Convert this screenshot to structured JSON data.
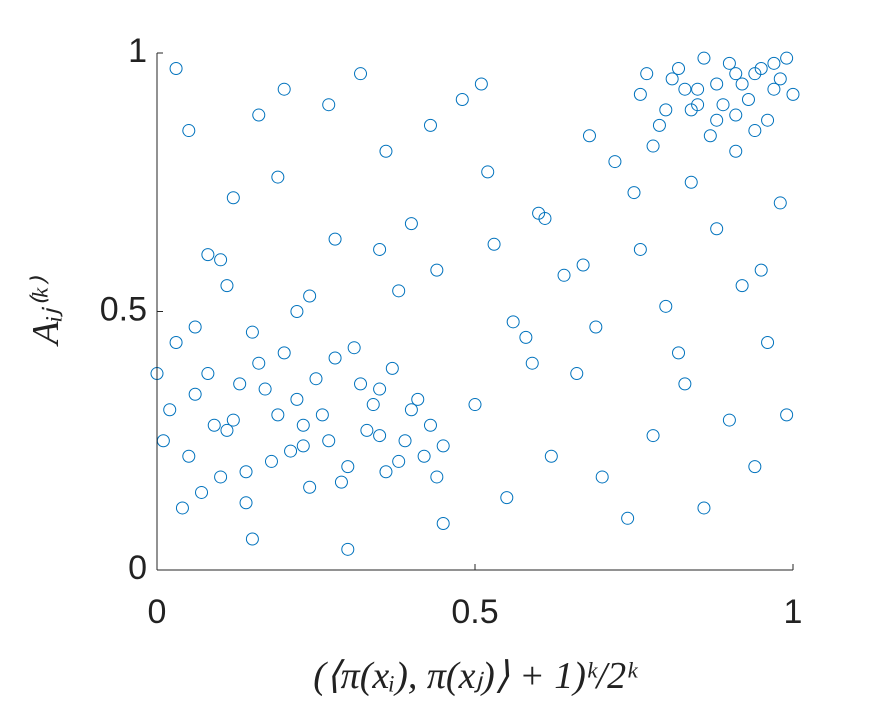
{
  "chart_data": {
    "type": "scatter",
    "x_label": "(⟨π(xᵢ), π(xⱼ)⟩ + 1)ᵏ/2ᵏ",
    "y_label": "Aᵢⱼ⁽ᵏ⁾",
    "xlim": [
      0,
      1
    ],
    "ylim": [
      0,
      1
    ],
    "xticks": [
      0,
      0.5,
      1
    ],
    "yticks": [
      0,
      0.5,
      1
    ],
    "series": [
      {
        "color": "#0072BD",
        "x": [
          0.02,
          0.05,
          0.08,
          0.11,
          0.14,
          0.17,
          0.2,
          0.23,
          0.26,
          0.29,
          0.32,
          0.35,
          0.38,
          0.41,
          0.44,
          0.03,
          0.07,
          0.12,
          0.16,
          0.21,
          0.25,
          0.3,
          0.34,
          0.39,
          0.43,
          0.01,
          0.06,
          0.1,
          0.15,
          0.19,
          0.24,
          0.28,
          0.33,
          0.37,
          0.42,
          0.04,
          0.09,
          0.13,
          0.18,
          0.22,
          0.27,
          0.31,
          0.36,
          0.4,
          0.45,
          0.0,
          0.06,
          0.14,
          0.23,
          0.35,
          0.76,
          0.79,
          0.82,
          0.85,
          0.88,
          0.91,
          0.94,
          0.97,
          0.99,
          0.78,
          0.81,
          0.84,
          0.87,
          0.9,
          0.93,
          0.96,
          0.98,
          0.77,
          0.83,
          0.86,
          0.89,
          0.92,
          0.95,
          1.0,
          0.8,
          0.88,
          0.94,
          0.97,
          0.91,
          0.85,
          0.05,
          0.12,
          0.2,
          0.28,
          0.36,
          0.44,
          0.52,
          0.6,
          0.68,
          0.76,
          0.84,
          0.92,
          0.98,
          0.08,
          0.16,
          0.24,
          0.32,
          0.4,
          0.48,
          0.56,
          0.64,
          0.72,
          0.8,
          0.88,
          0.96,
          0.03,
          0.11,
          0.19,
          0.27,
          0.35,
          0.43,
          0.51,
          0.59,
          0.67,
          0.75,
          0.83,
          0.91,
          0.99,
          0.15,
          0.3,
          0.45,
          0.55,
          0.62,
          0.7,
          0.78,
          0.86,
          0.94,
          0.5,
          0.58,
          0.66,
          0.74,
          0.82,
          0.9,
          0.1,
          0.22,
          0.38,
          0.53,
          0.61,
          0.69,
          0.95
        ],
        "values": [
          0.31,
          0.22,
          0.38,
          0.27,
          0.19,
          0.35,
          0.42,
          0.24,
          0.3,
          0.17,
          0.36,
          0.26,
          0.21,
          0.33,
          0.18,
          0.44,
          0.15,
          0.29,
          0.4,
          0.23,
          0.37,
          0.2,
          0.32,
          0.25,
          0.28,
          0.25,
          0.34,
          0.18,
          0.46,
          0.3,
          0.16,
          0.41,
          0.27,
          0.39,
          0.22,
          0.12,
          0.28,
          0.36,
          0.21,
          0.33,
          0.25,
          0.43,
          0.19,
          0.31,
          0.24,
          0.38,
          0.47,
          0.13,
          0.28,
          0.35,
          0.92,
          0.86,
          0.97,
          0.9,
          0.94,
          0.88,
          0.96,
          0.93,
          0.99,
          0.82,
          0.95,
          0.89,
          0.84,
          0.98,
          0.91,
          0.87,
          0.95,
          0.96,
          0.93,
          0.99,
          0.9,
          0.94,
          0.97,
          0.92,
          0.89,
          0.87,
          0.85,
          0.98,
          0.96,
          0.93,
          0.85,
          0.72,
          0.93,
          0.64,
          0.81,
          0.58,
          0.77,
          0.69,
          0.84,
          0.62,
          0.75,
          0.55,
          0.71,
          0.61,
          0.88,
          0.53,
          0.96,
          0.67,
          0.91,
          0.48,
          0.57,
          0.79,
          0.51,
          0.66,
          0.44,
          0.97,
          0.55,
          0.76,
          0.9,
          0.62,
          0.86,
          0.94,
          0.4,
          0.59,
          0.73,
          0.36,
          0.81,
          0.3,
          0.06,
          0.04,
          0.09,
          0.14,
          0.22,
          0.18,
          0.26,
          0.12,
          0.2,
          0.32,
          0.45,
          0.38,
          0.1,
          0.42,
          0.29,
          0.6,
          0.5,
          0.54,
          0.63,
          0.68,
          0.47,
          0.58
        ]
      }
    ]
  }
}
